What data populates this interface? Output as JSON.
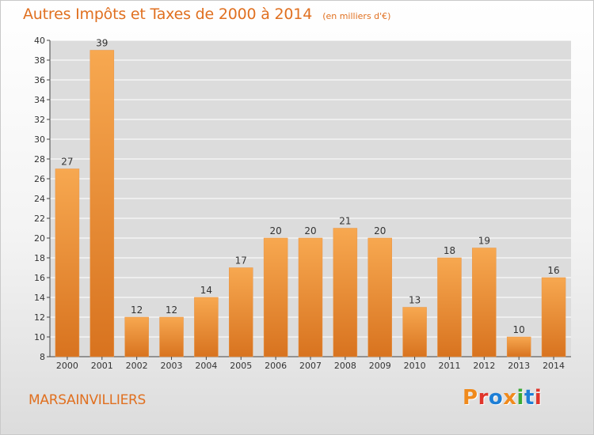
{
  "header": {
    "title": "Autres Impôts et Taxes de 2000 à 2014",
    "subtitle": "(en milliers d'€)"
  },
  "footer": {
    "city": "MARSAINVILLIERS",
    "logo_text": "Proxiti",
    "logo_colors": [
      "#f08a1c",
      "#e0352b",
      "#1e7fd6",
      "#f08a1c",
      "#3aaa35",
      "#1e7fd6",
      "#e0352b"
    ]
  },
  "colors": {
    "title": "#e07020",
    "bar_light": "#f7a850",
    "bar_dark": "#d8731f",
    "plot_bg": "#dcdcdc",
    "grid": "#ffffff"
  },
  "chart_data": {
    "type": "bar",
    "title": "Autres Impôts et Taxes de 2000 à 2014",
    "subtitle": "(en milliers d'€)",
    "xlabel": "",
    "ylabel": "",
    "categories": [
      "2000",
      "2001",
      "2002",
      "2003",
      "2004",
      "2005",
      "2006",
      "2007",
      "2008",
      "2009",
      "2010",
      "2011",
      "2012",
      "2013",
      "2014"
    ],
    "values": [
      27,
      39,
      12,
      12,
      14,
      17,
      20,
      20,
      21,
      20,
      13,
      18,
      19,
      10,
      16
    ],
    "ylim": [
      8,
      40
    ],
    "yticks": [
      8,
      10,
      12,
      14,
      16,
      18,
      20,
      22,
      24,
      26,
      28,
      30,
      32,
      34,
      36,
      38,
      40
    ],
    "grid": true,
    "legend": "none"
  }
}
